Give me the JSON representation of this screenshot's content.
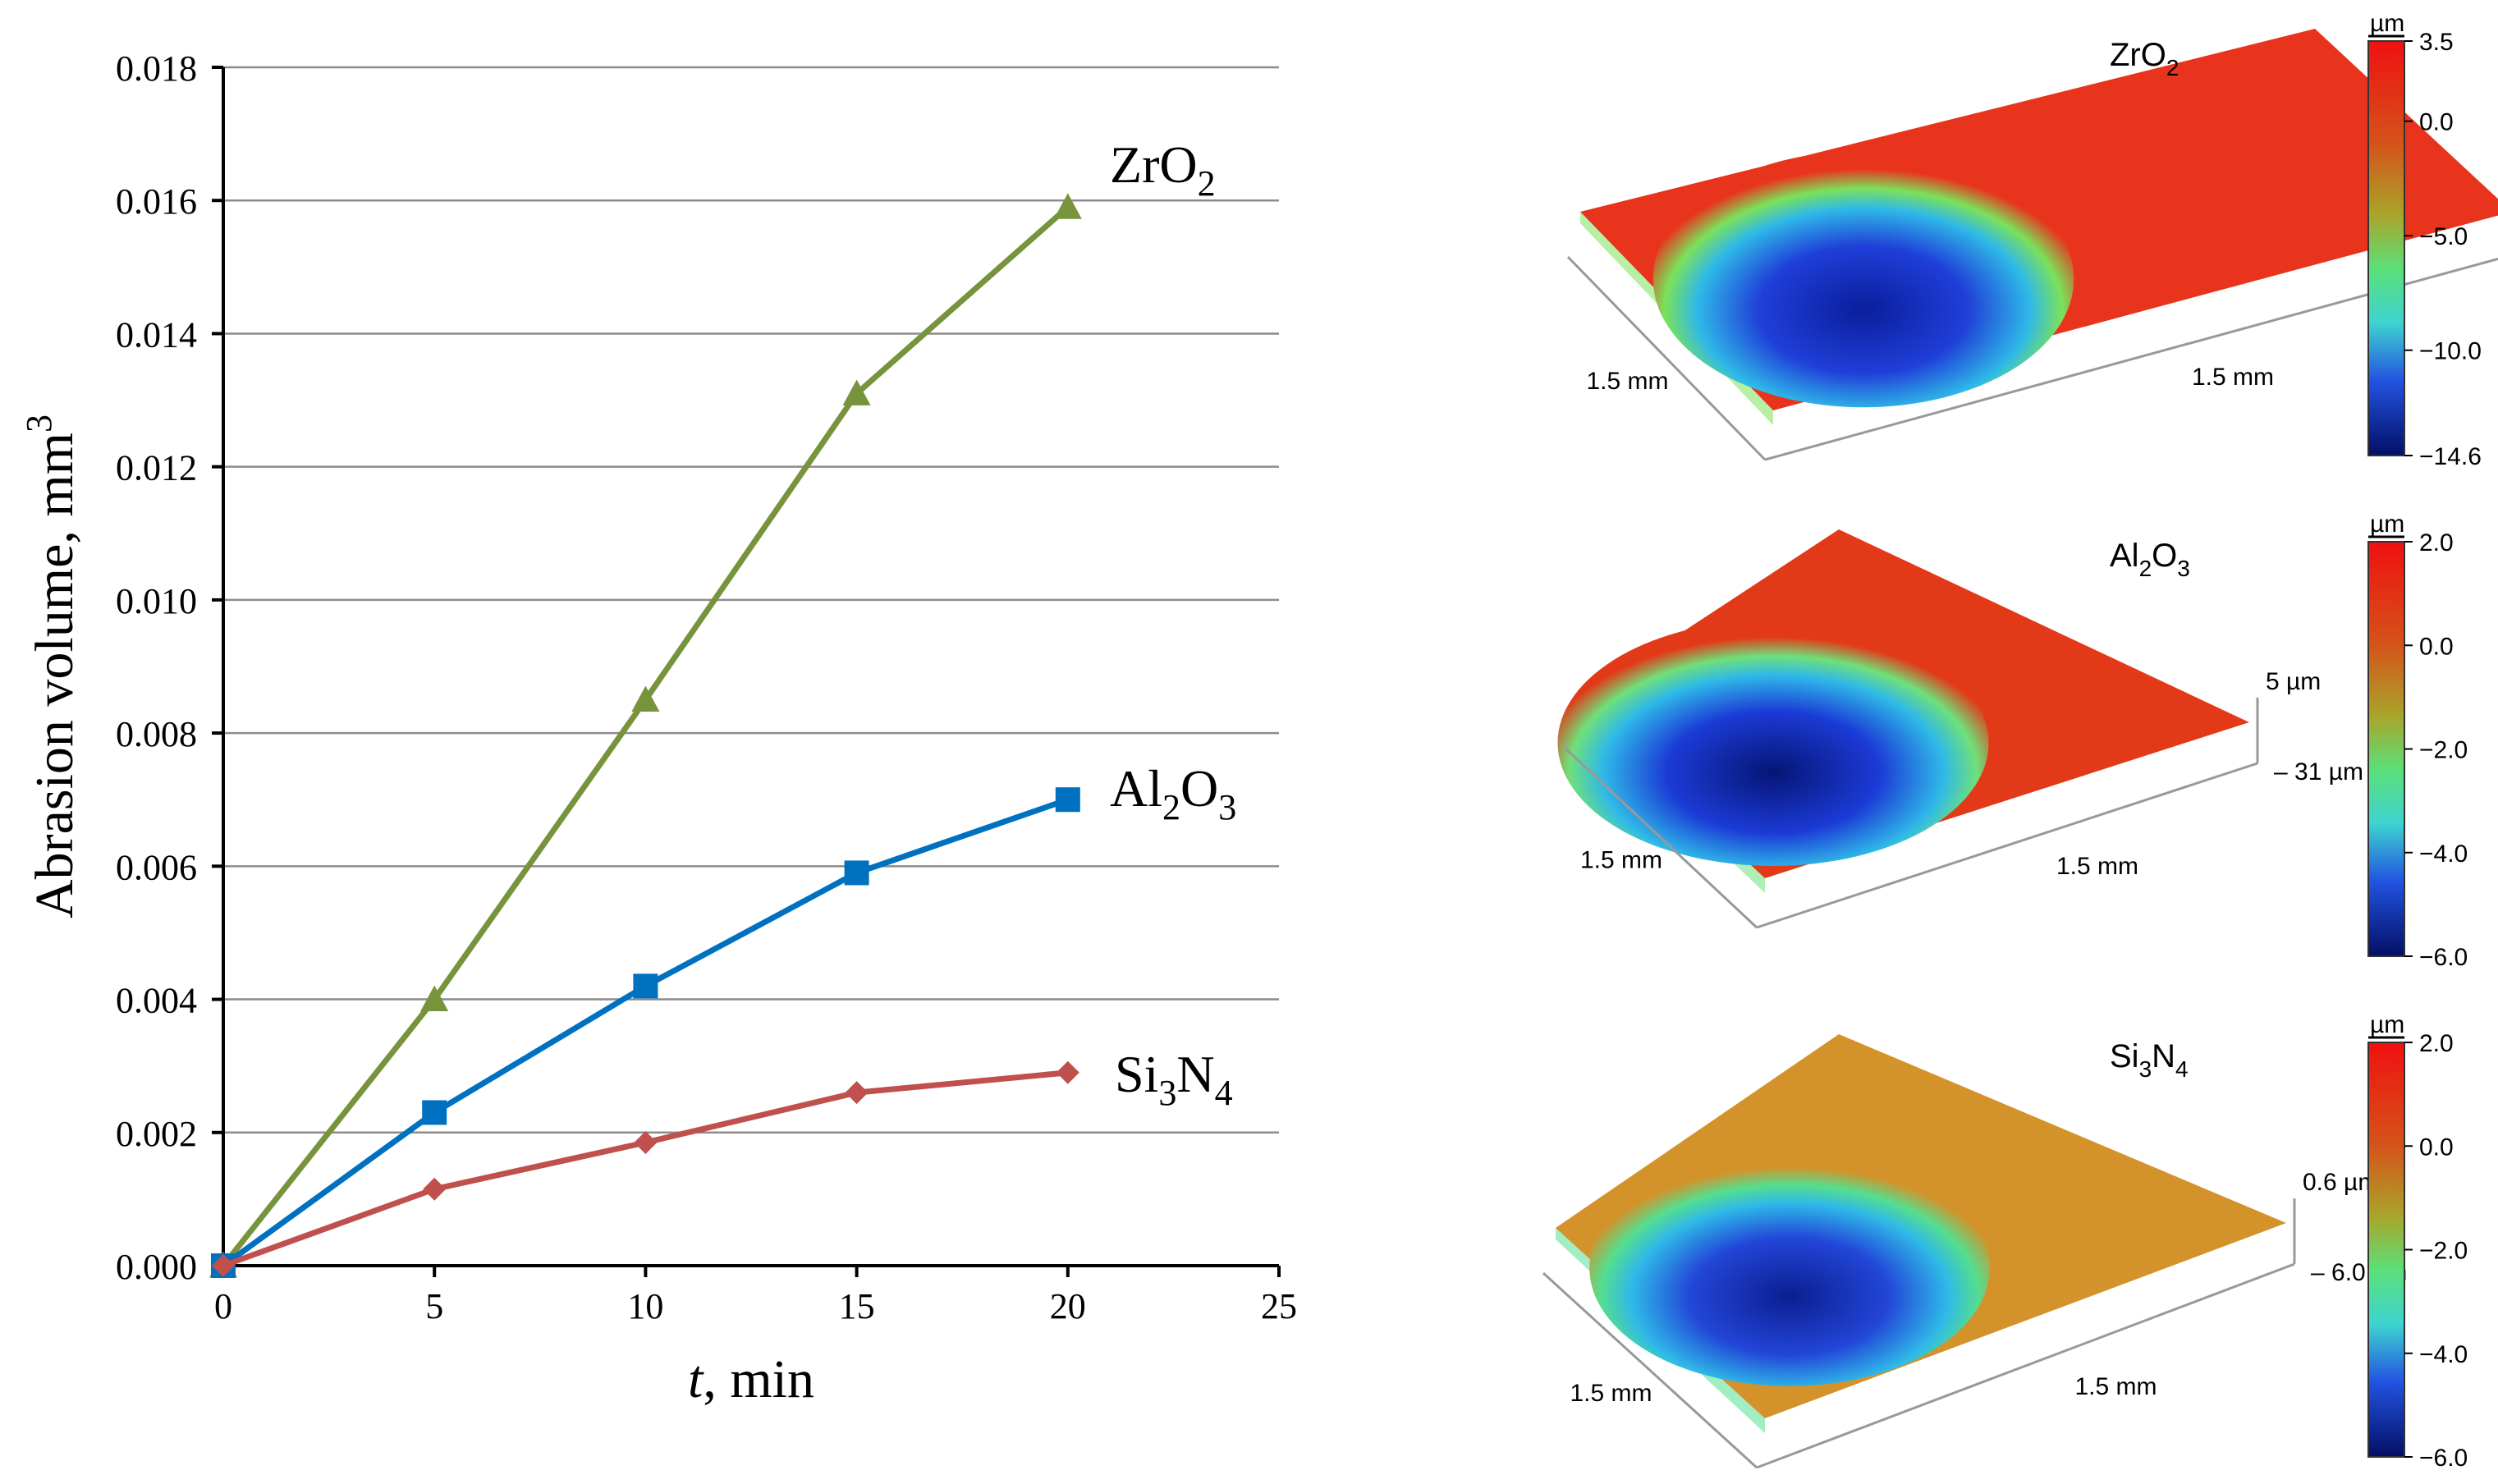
{
  "chart_data": {
    "type": "line",
    "xlabel_italic": "t",
    "xlabel_rest": ", min",
    "ylabel": "Abrasion volume, mm",
    "ylabel_sup": "3",
    "xlim": [
      0,
      25
    ],
    "ylim": [
      0,
      0.018
    ],
    "xticks": [
      "0",
      "5",
      "10",
      "15",
      "20",
      "25"
    ],
    "yticks": [
      "0.000",
      "0.002",
      "0.004",
      "0.006",
      "0.008",
      "0.010",
      "0.012",
      "0.014",
      "0.016",
      "0.018"
    ],
    "x": [
      0,
      5,
      10,
      15,
      20
    ],
    "series": [
      {
        "name": "ZrO2",
        "label_main": "ZrO",
        "label_sub": "2",
        "label_main2": "",
        "label_sub2": "",
        "marker": "triangle",
        "color": "#77933C",
        "values": [
          0.0,
          0.004,
          0.0085,
          0.0131,
          0.0159
        ]
      },
      {
        "name": "Al2O3",
        "label_main": "Al",
        "label_sub": "2",
        "label_main2": "O",
        "label_sub2": "3",
        "marker": "square",
        "color": "#0070C0",
        "values": [
          0.0,
          0.0023,
          0.0042,
          0.0059,
          0.007
        ]
      },
      {
        "name": "Si3N4",
        "label_main": "Si",
        "label_sub": "3",
        "label_main2": "N",
        "label_sub2": "4",
        "marker": "diamond",
        "color": "#C0504D",
        "values": [
          0.0,
          0.00115,
          0.00185,
          0.0026,
          0.0029
        ]
      }
    ]
  },
  "maps": [
    {
      "title_main": "ZrO",
      "title_sub": "2",
      "title_main2": "",
      "title_sub2": "",
      "unit": "µm",
      "ticks": [
        "3.5",
        "0.0",
        "−5.0",
        "−10.0",
        "−14.6"
      ],
      "ticks_values": [
        3.5,
        0.0,
        -5.0,
        -10.0,
        -14.6
      ],
      "axis_left": "1.5 mm",
      "axis_right": "1.5 mm",
      "z_top": "",
      "z_bottom": "",
      "surface_color": "#E8341C",
      "ring_color": "#7BE15A",
      "pit_color": "#1F3FD8",
      "pit_core": "#0A1E9C"
    },
    {
      "title_main": "Al",
      "title_sub": "2",
      "title_main2": "O",
      "title_sub2": "3",
      "unit": "µm",
      "ticks": [
        "2.0",
        "0.0",
        "−2.0",
        "−4.0",
        "−6.0"
      ],
      "ticks_values": [
        2.0,
        0.0,
        -2.0,
        -4.0,
        -6.0
      ],
      "axis_left": "1.5 mm",
      "axis_right": "1.5 mm",
      "z_top": "5 µm",
      "z_bottom": "– 31 µm",
      "surface_color": "#E23A18",
      "ring_color": "#6FE07A",
      "pit_color": "#1B3BD6",
      "pit_core": "#061575"
    },
    {
      "title_main": "Si",
      "title_sub": "3",
      "title_main2": "N",
      "title_sub2": "4",
      "unit": "µm",
      "ticks": [
        "2.0",
        "0.0",
        "−2.0",
        "−4.0",
        "−6.0"
      ],
      "ticks_values": [
        2.0,
        0.0,
        -2.0,
        -4.0,
        -6.0
      ],
      "axis_left": "1.5 mm",
      "axis_right": "1.5 mm",
      "z_top": "0.6 µm",
      "z_bottom": "– 6.0 µm",
      "surface_color": "#D4922A",
      "ring_color": "#55DE8E",
      "pit_color": "#2246D8",
      "pit_core": "#0B1E90"
    }
  ]
}
